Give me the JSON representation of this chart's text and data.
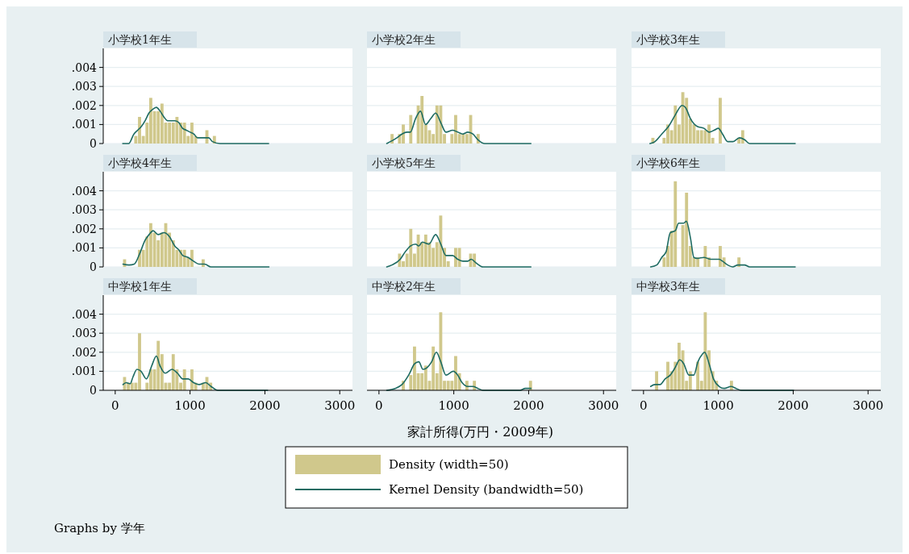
{
  "chart_data": [
    {
      "type": "histogram",
      "title": "小学校1年生",
      "legend": "bottom",
      "xlim": [
        -160,
        3170
      ],
      "ylim": [
        0,
        0.005
      ],
      "yticks": [
        0,
        {
          "value": 0.001,
          "label": ".001"
        },
        {
          "value": 0.002,
          "label": ".002"
        },
        {
          "value": 0.003,
          "label": ".003"
        },
        {
          "value": 0.004,
          "label": ".004"
        }
      ],
      "grid": "y",
      "tick_labels": "y",
      "series": [
        {
          "type": "histogram",
          "name": "Density (width=50)",
          "color": "#d0c88c",
          "bins": [
            250,
            300,
            350,
            400,
            450,
            500,
            550,
            600,
            650,
            700,
            750,
            800,
            850,
            900,
            950,
            1000,
            1050,
            1100,
            1150,
            1200,
            1250,
            1300,
            1350
          ],
          "values": [
            0.0004,
            0.0014,
            0.0004,
            0.0011,
            0.0024,
            0.0017,
            0.0017,
            0.0021,
            0.0011,
            0.0011,
            0.0011,
            0.0014,
            0.0011,
            0.0011,
            0.0004,
            0.0011,
            0.0004,
            0,
            0,
            0.0007,
            0,
            0.0004
          ]
        },
        {
          "type": "line",
          "name": "Kernel Density (bandwidth=50)",
          "color": "#1e6b62",
          "x": [
            100,
            180,
            250,
            300,
            350,
            400,
            450,
            500,
            550,
            600,
            650,
            700,
            800,
            850,
            900,
            950,
            1000,
            1050,
            1100,
            1150,
            1200,
            1250,
            1300,
            1400,
            2050
          ],
          "values": [
            0,
            0,
            0.0005,
            0.0007,
            0.0009,
            0.0012,
            0.0016,
            0.0018,
            0.0019,
            0.0017,
            0.0014,
            0.0012,
            0.0012,
            0.0011,
            0.0008,
            0.0007,
            0.0006,
            0.0005,
            0.0003,
            0.0003,
            0.0003,
            0.0003,
            0.0001,
            0,
            0
          ]
        }
      ]
    },
    {
      "type": "histogram",
      "title": "小学校2年生",
      "xlim": [
        -160,
        3170
      ],
      "ylim": [
        0,
        0.005
      ],
      "yticks": [
        0,
        0.001,
        0.002,
        0.003,
        0.004
      ],
      "grid": "y",
      "tick_labels": false,
      "series": [
        {
          "type": "histogram",
          "color": "#d0c88c",
          "bins": [
            150,
            200,
            250,
            300,
            350,
            400,
            450,
            500,
            550,
            600,
            650,
            700,
            750,
            800,
            850,
            900,
            950,
            1000,
            1050,
            1100,
            1150,
            1200,
            1250,
            1300,
            1350
          ],
          "values": [
            0.0005,
            0,
            0.0005,
            0.001,
            0,
            0.0015,
            0,
            0.002,
            0.0025,
            0.001,
            0.0007,
            0.0005,
            0.002,
            0.002,
            0.0005,
            0,
            0.0005,
            0.0015,
            0.0005,
            0.0005,
            0.0005,
            0.0015,
            0,
            0.0005
          ]
        },
        {
          "type": "line",
          "color": "#1e6b62",
          "x": [
            104,
            240,
            307,
            375,
            420,
            488,
            555,
            623,
            690,
            758,
            826,
            894,
            984,
            1052,
            1120,
            1187,
            1255,
            1323,
            1413,
            2030
          ],
          "values": [
            0,
            0.0003,
            0.0005,
            0.0006,
            0.0006,
            0.0013,
            0.0017,
            0.001,
            0.0013,
            0.0016,
            0.0011,
            0.0006,
            0.0007,
            0.0006,
            0.0005,
            0.0006,
            0.0005,
            0.0002,
            0,
            0
          ]
        }
      ]
    },
    {
      "type": "histogram",
      "title": "小学校3年生",
      "xlim": [
        -160,
        3170
      ],
      "ylim": [
        0,
        0.005
      ],
      "yticks": [
        0,
        0.001,
        0.002,
        0.003,
        0.004
      ],
      "grid": "y",
      "tick_labels": false,
      "series": [
        {
          "type": "histogram",
          "color": "#d0c88c",
          "bins": [
            100,
            150,
            200,
            250,
            300,
            350,
            400,
            450,
            500,
            550,
            600,
            650,
            700,
            750,
            800,
            850,
            900,
            950,
            1000,
            1050,
            1100,
            1150,
            1200,
            1250,
            1300,
            1350
          ],
          "values": [
            0.0003,
            0,
            0,
            0.0003,
            0.001,
            0.0007,
            0.002,
            0.001,
            0.0027,
            0.0024,
            0.0013,
            0.001,
            0.0007,
            0.0007,
            0.0007,
            0.001,
            0.0003,
            0,
            0.0024,
            0,
            0,
            0,
            0,
            0.0003,
            0.0007
          ]
        },
        {
          "type": "line",
          "color": "#1e6b62",
          "x": [
            86,
            153,
            244,
            334,
            424,
            515,
            560,
            628,
            718,
            808,
            876,
            944,
            1000,
            1056,
            1124,
            1192,
            1282,
            1350,
            1418,
            2027
          ],
          "values": [
            0,
            0.0001,
            0.0005,
            0.0009,
            0.0015,
            0.002,
            0.0019,
            0.0013,
            0.0009,
            0.0008,
            0.0006,
            0.0007,
            0.0008,
            0.0005,
            0.0001,
            0.0001,
            0.0003,
            0.0002,
            0,
            0
          ]
        }
      ]
    },
    {
      "type": "histogram",
      "title": "小学校4年生",
      "xlim": [
        -160,
        3170
      ],
      "ylim": [
        0,
        0.005
      ],
      "yticks": [
        0,
        {
          "value": 0.001,
          "label": ".001"
        },
        {
          "value": 0.002,
          "label": ".002"
        },
        {
          "value": 0.003,
          "label": ".003"
        },
        {
          "value": 0.004,
          "label": ".004"
        }
      ],
      "grid": "y",
      "tick_labels": "y",
      "series": [
        {
          "type": "histogram",
          "color": "#d0c88c",
          "bins": [
            100,
            150,
            200,
            250,
            300,
            350,
            400,
            450,
            500,
            550,
            600,
            650,
            700,
            750,
            800,
            850,
            900,
            950,
            1000,
            1050,
            1100,
            1150,
            1200
          ],
          "values": [
            0.0004,
            0,
            0,
            0,
            0.0009,
            0.0009,
            0.0016,
            0.0023,
            0.0018,
            0.0014,
            0.0018,
            0.0023,
            0.0018,
            0.0014,
            0.0009,
            0.0009,
            0.0009,
            0.0005,
            0.0009,
            0,
            0,
            0.0004
          ]
        },
        {
          "type": "line",
          "color": "#1e6b62",
          "x": [
            104,
            184,
            255,
            327,
            399,
            453,
            507,
            572,
            651,
            723,
            795,
            849,
            903,
            975,
            1047,
            1119,
            1191,
            1281,
            2054
          ],
          "values": [
            0.00015,
            0.0001,
            0.00015,
            0.0007,
            0.0014,
            0.0017,
            0.0019,
            0.0017,
            0.0018,
            0.0016,
            0.0011,
            0.0009,
            0.0006,
            0.0005,
            0.0003,
            0.00015,
            0.00015,
            0,
            0
          ]
        }
      ]
    },
    {
      "type": "histogram",
      "title": "小学校5年生",
      "xlim": [
        -160,
        3170
      ],
      "ylim": [
        0,
        0.005
      ],
      "yticks": [
        0,
        0.001,
        0.002,
        0.003,
        0.004
      ],
      "grid": "y",
      "tick_labels": false,
      "series": [
        {
          "type": "histogram",
          "color": "#d0c88c",
          "bins": [
            250,
            300,
            350,
            400,
            450,
            500,
            550,
            600,
            650,
            700,
            750,
            800,
            850,
            900,
            950,
            1000,
            1050,
            1100,
            1150,
            1200,
            1250,
            1300
          ],
          "values": [
            0.0007,
            0.0003,
            0.0007,
            0.002,
            0.0007,
            0.0017,
            0.0013,
            0.0017,
            0.0013,
            0.001,
            0.0013,
            0.0027,
            0.001,
            0.0003,
            0,
            0.001,
            0.001,
            0,
            0,
            0.0007,
            0.0007
          ]
        },
        {
          "type": "line",
          "color": "#1e6b62",
          "x": [
            104,
            172,
            284,
            352,
            420,
            488,
            533,
            578,
            668,
            758,
            826,
            894,
            984,
            1052,
            1120,
            1187,
            1233,
            1300,
            1390,
            2030
          ],
          "values": [
            0,
            0.0001,
            0.0004,
            0.0008,
            0.0011,
            0.0012,
            0.0011,
            0.0013,
            0.0012,
            0.0017,
            0.0012,
            0.0006,
            0.0006,
            0.0004,
            0.0003,
            0.0003,
            0.0004,
            0.0002,
            0,
            0
          ]
        }
      ]
    },
    {
      "type": "histogram",
      "title": "小学校6年生",
      "xlim": [
        -160,
        3170
      ],
      "ylim": [
        0,
        0.005
      ],
      "yticks": [
        0,
        0.001,
        0.002,
        0.003,
        0.004
      ],
      "grid": "y",
      "tick_labels": false,
      "series": [
        {
          "type": "histogram",
          "color": "#d0c88c",
          "bins": [
            250,
            300,
            350,
            400,
            450,
            500,
            550,
            600,
            650,
            700,
            750,
            800,
            850,
            900,
            950,
            1000,
            1050,
            1100,
            1150,
            1200,
            1250,
            1300
          ],
          "values": [
            0.0005,
            0.0011,
            0.0019,
            0.0045,
            0,
            0.0022,
            0.0039,
            0.0011,
            0.0005,
            0.0005,
            0,
            0.0011,
            0.0005,
            0,
            0,
            0.0011,
            0.0005,
            0,
            0,
            0,
            0.0005
          ]
        },
        {
          "type": "line",
          "color": "#1e6b62",
          "x": [
            95,
            176,
            244,
            302,
            357,
            424,
            470,
            537,
            573,
            628,
            673,
            718,
            808,
            898,
            1011,
            1056,
            1124,
            1192,
            1260,
            1350,
            1418,
            2027
          ],
          "values": [
            0,
            0.0001,
            0.0005,
            0.0008,
            0.0018,
            0.0019,
            0.0023,
            0.0023,
            0.0024,
            0.0015,
            0.0005,
            0.00045,
            0.0005,
            0.0004,
            0.0004,
            0.0003,
            0.0001,
            0,
            0.0001,
            0.0001,
            0,
            0
          ]
        }
      ]
    },
    {
      "type": "histogram",
      "title": "中学校1年生",
      "xlim": [
        -160,
        3170
      ],
      "ylim": [
        0,
        0.005
      ],
      "xticks": [
        0,
        1000,
        2000,
        3000
      ],
      "yticks": [
        0,
        {
          "value": 0.001,
          "label": ".001"
        },
        {
          "value": 0.002,
          "label": ".002"
        },
        {
          "value": 0.003,
          "label": ".003"
        },
        {
          "value": 0.004,
          "label": ".004"
        }
      ],
      "grid": "y",
      "annotations": [
        "Graphs by 学年"
      ],
      "series": [
        {
          "type": "histogram",
          "color": "#d0c88c",
          "bins": [
            100,
            150,
            200,
            250,
            300,
            350,
            400,
            450,
            500,
            550,
            600,
            650,
            700,
            750,
            800,
            850,
            900,
            950,
            1000,
            1050,
            1100,
            1150,
            1200,
            1250,
            1300
          ],
          "values": [
            0.0007,
            0.0004,
            0.0004,
            0.0004,
            0.003,
            0,
            0.0004,
            0.0011,
            0.0011,
            0.0026,
            0.0019,
            0.0004,
            0.0004,
            0.0019,
            0.0011,
            0.0004,
            0.0011,
            0,
            0.0011,
            0.0004,
            0,
            0.0004,
            0.0007,
            0.0004
          ]
        },
        {
          "type": "line",
          "color": "#1e6b62",
          "x": [
            104,
            147,
            201,
            237,
            291,
            345,
            417,
            489,
            550,
            597,
            669,
            759,
            831,
            903,
            975,
            1047,
            1119,
            1209,
            1281,
            1371,
            2036
          ],
          "values": [
            0.0003,
            0.0004,
            0.00035,
            0.0007,
            0.0011,
            0.001,
            0.0006,
            0.0013,
            0.0018,
            0.0013,
            0.0009,
            0.0011,
            0.0009,
            0.0006,
            0.0006,
            0.0004,
            0.0003,
            0.0004,
            0.0002,
            0,
            0
          ]
        }
      ]
    },
    {
      "type": "histogram",
      "title": "中学校2年生",
      "xlabel": "家計所得(万円・2009年)",
      "xlim": [
        -160,
        3170
      ],
      "ylim": [
        0,
        0.005
      ],
      "xticks": [
        0,
        1000,
        2000,
        3000
      ],
      "yticks": [
        0,
        0.001,
        0.002,
        0.003,
        0.004
      ],
      "grid": "y",
      "tick_labels": "x",
      "series": [
        {
          "type": "histogram",
          "color": "#d0c88c",
          "bins": [
            300,
            350,
            400,
            450,
            500,
            550,
            600,
            650,
            700,
            750,
            800,
            850,
            900,
            950,
            1000,
            1050,
            1100,
            1150,
            1200,
            1250,
            1300,
            1350,
            1400,
            1450,
            1500,
            1550,
            1600,
            1650,
            1700,
            1750,
            1800,
            1850,
            1900,
            1950,
            2000,
            2050
          ],
          "values": [
            0.0005,
            0,
            0.0008,
            0.0023,
            0.0009,
            0.0009,
            0.0013,
            0.0005,
            0.0023,
            0.0009,
            0.0041,
            0.0005,
            0.0005,
            0.0005,
            0.0018,
            0.0009,
            0,
            0.0005,
            0,
            0.0005,
            0,
            0,
            0,
            0,
            0,
            0,
            0,
            0,
            0,
            0,
            0,
            0,
            0,
            0,
            0.0005
          ]
        },
        {
          "type": "line",
          "color": "#1e6b62",
          "x": [
            104,
            217,
            307,
            397,
            478,
            533,
            587,
            646,
            704,
            767,
            826,
            894,
            993,
            1052,
            1111,
            1187,
            1255,
            1323,
            1390,
            1887,
            1955,
            2032
          ],
          "values": [
            0,
            0.0001,
            0.0003,
            0.0008,
            0.0014,
            0.0015,
            0.0011,
            0.0012,
            0.0015,
            0.002,
            0.0015,
            0.0008,
            0.001,
            0.0008,
            0.0004,
            0.0002,
            0.0002,
            0.0001,
            0,
            0,
            0.0001,
            0.0001
          ]
        }
      ]
    },
    {
      "type": "histogram",
      "title": "中学校3年生",
      "xlim": [
        -160,
        3170
      ],
      "ylim": [
        0,
        0.005
      ],
      "xticks": [
        0,
        1000,
        2000,
        3000
      ],
      "yticks": [
        0,
        0.001,
        0.002,
        0.003,
        0.004
      ],
      "grid": "y",
      "tick_labels": "x",
      "series": [
        {
          "type": "histogram",
          "color": "#d0c88c",
          "bins": [
            150,
            200,
            250,
            300,
            350,
            400,
            450,
            500,
            550,
            600,
            650,
            700,
            750,
            800,
            850,
            900,
            950,
            1000,
            1050,
            1100,
            1150,
            1200
          ],
          "values": [
            0.001,
            0,
            0,
            0.0015,
            0.001,
            0.0015,
            0.0025,
            0.0021,
            0.0005,
            0.001,
            0,
            0.0015,
            0.0005,
            0.0041,
            0.0021,
            0.001,
            0.0005,
            0,
            0,
            0,
            0.0005
          ]
        },
        {
          "type": "line",
          "color": "#1e6b62",
          "x": [
            95,
            153,
            221,
            289,
            357,
            424,
            483,
            537,
            605,
            673,
            727,
            786,
            817,
            876,
            935,
            1011,
            1079,
            1169,
            1237,
            1305,
            2005
          ],
          "values": [
            0.0002,
            0.0003,
            0.0003,
            0.0006,
            0.0008,
            0.0012,
            0.0016,
            0.0014,
            0.0008,
            0.0008,
            0.0015,
            0.0019,
            0.002,
            0.0014,
            0.0006,
            0.0002,
            0.0001,
            0.0002,
            0.0001,
            0,
            0
          ]
        }
      ]
    }
  ]
}
